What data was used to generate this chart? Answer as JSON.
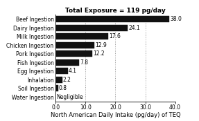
{
  "title": "Total Exposure = 119 pg/day",
  "xlabel": "North American Daily Intake (pg/day) of TEQ",
  "categories": [
    "Water Ingestion",
    "Soil Ingestion",
    "Inhalation",
    "Egg Ingestion",
    "Fish Ingestion",
    "Pork Ingestion",
    "Chicken Ingestion",
    "Milk Ingestion",
    "Dairy Ingestion",
    "Beef Ingestion"
  ],
  "values": [
    0.0,
    0.8,
    2.2,
    4.1,
    7.8,
    12.2,
    12.9,
    17.6,
    24.1,
    38.0
  ],
  "labels": [
    "Negligible",
    "0.8",
    "2.2",
    "4.1",
    "7.8",
    "12.2",
    "12.9",
    "17.6",
    "24.1",
    "38.0"
  ],
  "bar_color": "#111111",
  "xlim": [
    0,
    40
  ],
  "xticks": [
    0.0,
    10.0,
    20.0,
    30.0,
    40.0
  ],
  "grid_color": "#999999",
  "title_fontsize": 6.5,
  "xlabel_fontsize": 6.0,
  "tick_fontsize": 5.5,
  "value_label_fontsize": 5.5,
  "bar_height": 0.72
}
